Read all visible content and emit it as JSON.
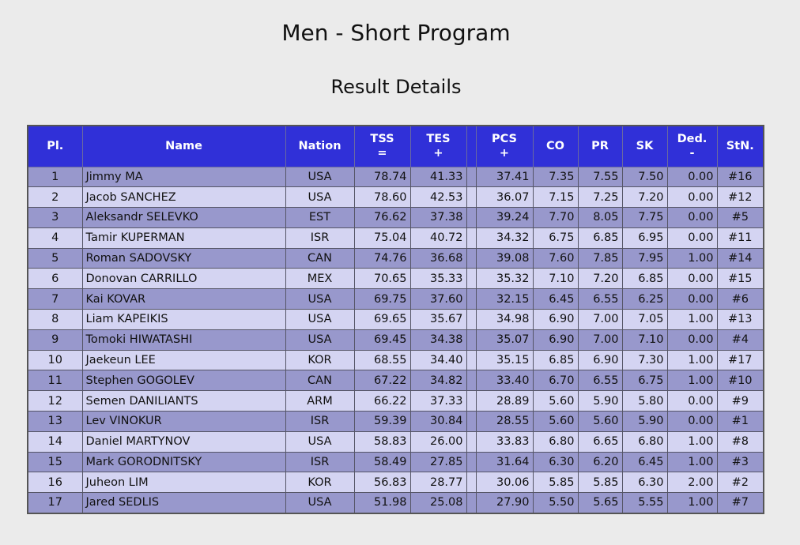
{
  "page": {
    "title": "Men - Short Program",
    "subtitle": "Result Details"
  },
  "colors": {
    "header_bg": "#3030d8",
    "row_odd": "#9898cc",
    "row_even": "#d4d4f2",
    "page_bg": "#ebebeb"
  },
  "table": {
    "headers": {
      "pl": "Pl.",
      "name": "Name",
      "nation": "Nation",
      "tss": "TSS",
      "tss_sym": "=",
      "tes": "TES",
      "tes_sym": "+",
      "pcs": "PCS",
      "pcs_sym": "+",
      "co": "CO",
      "pr": "PR",
      "sk": "SK",
      "ded": "Ded.",
      "ded_sym": "-",
      "stn": "StN."
    },
    "rows": [
      {
        "pl": "1",
        "name": "Jimmy MA",
        "nation": "USA",
        "tss": "78.74",
        "tes": "41.33",
        "pcs": "37.41",
        "co": "7.35",
        "pr": "7.55",
        "sk": "7.50",
        "ded": "0.00",
        "stn": "#16"
      },
      {
        "pl": "2",
        "name": "Jacob SANCHEZ",
        "nation": "USA",
        "tss": "78.60",
        "tes": "42.53",
        "pcs": "36.07",
        "co": "7.15",
        "pr": "7.25",
        "sk": "7.20",
        "ded": "0.00",
        "stn": "#12"
      },
      {
        "pl": "3",
        "name": "Aleksandr SELEVKO",
        "nation": "EST",
        "tss": "76.62",
        "tes": "37.38",
        "pcs": "39.24",
        "co": "7.70",
        "pr": "8.05",
        "sk": "7.75",
        "ded": "0.00",
        "stn": "#5"
      },
      {
        "pl": "4",
        "name": "Tamir KUPERMAN",
        "nation": "ISR",
        "tss": "75.04",
        "tes": "40.72",
        "pcs": "34.32",
        "co": "6.75",
        "pr": "6.85",
        "sk": "6.95",
        "ded": "0.00",
        "stn": "#11"
      },
      {
        "pl": "5",
        "name": "Roman SADOVSKY",
        "nation": "CAN",
        "tss": "74.76",
        "tes": "36.68",
        "pcs": "39.08",
        "co": "7.60",
        "pr": "7.85",
        "sk": "7.95",
        "ded": "1.00",
        "stn": "#14"
      },
      {
        "pl": "6",
        "name": "Donovan CARRILLO",
        "nation": "MEX",
        "tss": "70.65",
        "tes": "35.33",
        "pcs": "35.32",
        "co": "7.10",
        "pr": "7.20",
        "sk": "6.85",
        "ded": "0.00",
        "stn": "#15"
      },
      {
        "pl": "7",
        "name": "Kai KOVAR",
        "nation": "USA",
        "tss": "69.75",
        "tes": "37.60",
        "pcs": "32.15",
        "co": "6.45",
        "pr": "6.55",
        "sk": "6.25",
        "ded": "0.00",
        "stn": "#6"
      },
      {
        "pl": "8",
        "name": "Liam KAPEIKIS",
        "nation": "USA",
        "tss": "69.65",
        "tes": "35.67",
        "pcs": "34.98",
        "co": "6.90",
        "pr": "7.00",
        "sk": "7.05",
        "ded": "1.00",
        "stn": "#13"
      },
      {
        "pl": "9",
        "name": "Tomoki HIWATASHI",
        "nation": "USA",
        "tss": "69.45",
        "tes": "34.38",
        "pcs": "35.07",
        "co": "6.90",
        "pr": "7.00",
        "sk": "7.10",
        "ded": "0.00",
        "stn": "#4"
      },
      {
        "pl": "10",
        "name": "Jaekeun LEE",
        "nation": "KOR",
        "tss": "68.55",
        "tes": "34.40",
        "pcs": "35.15",
        "co": "6.85",
        "pr": "6.90",
        "sk": "7.30",
        "ded": "1.00",
        "stn": "#17"
      },
      {
        "pl": "11",
        "name": "Stephen GOGOLEV",
        "nation": "CAN",
        "tss": "67.22",
        "tes": "34.82",
        "pcs": "33.40",
        "co": "6.70",
        "pr": "6.55",
        "sk": "6.75",
        "ded": "1.00",
        "stn": "#10"
      },
      {
        "pl": "12",
        "name": "Semen DANILIANTS",
        "nation": "ARM",
        "tss": "66.22",
        "tes": "37.33",
        "pcs": "28.89",
        "co": "5.60",
        "pr": "5.90",
        "sk": "5.80",
        "ded": "0.00",
        "stn": "#9"
      },
      {
        "pl": "13",
        "name": "Lev VINOKUR",
        "nation": "ISR",
        "tss": "59.39",
        "tes": "30.84",
        "pcs": "28.55",
        "co": "5.60",
        "pr": "5.60",
        "sk": "5.90",
        "ded": "0.00",
        "stn": "#1"
      },
      {
        "pl": "14",
        "name": "Daniel MARTYNOV",
        "nation": "USA",
        "tss": "58.83",
        "tes": "26.00",
        "pcs": "33.83",
        "co": "6.80",
        "pr": "6.65",
        "sk": "6.80",
        "ded": "1.00",
        "stn": "#8"
      },
      {
        "pl": "15",
        "name": "Mark GORODNITSKY",
        "nation": "ISR",
        "tss": "58.49",
        "tes": "27.85",
        "pcs": "31.64",
        "co": "6.30",
        "pr": "6.20",
        "sk": "6.45",
        "ded": "1.00",
        "stn": "#3"
      },
      {
        "pl": "16",
        "name": "Juheon LIM",
        "nation": "KOR",
        "tss": "56.83",
        "tes": "28.77",
        "pcs": "30.06",
        "co": "5.85",
        "pr": "5.85",
        "sk": "6.30",
        "ded": "2.00",
        "stn": "#2"
      },
      {
        "pl": "17",
        "name": "Jared SEDLIS",
        "nation": "USA",
        "tss": "51.98",
        "tes": "25.08",
        "pcs": "27.90",
        "co": "5.50",
        "pr": "5.65",
        "sk": "5.55",
        "ded": "1.00",
        "stn": "#7"
      }
    ]
  }
}
